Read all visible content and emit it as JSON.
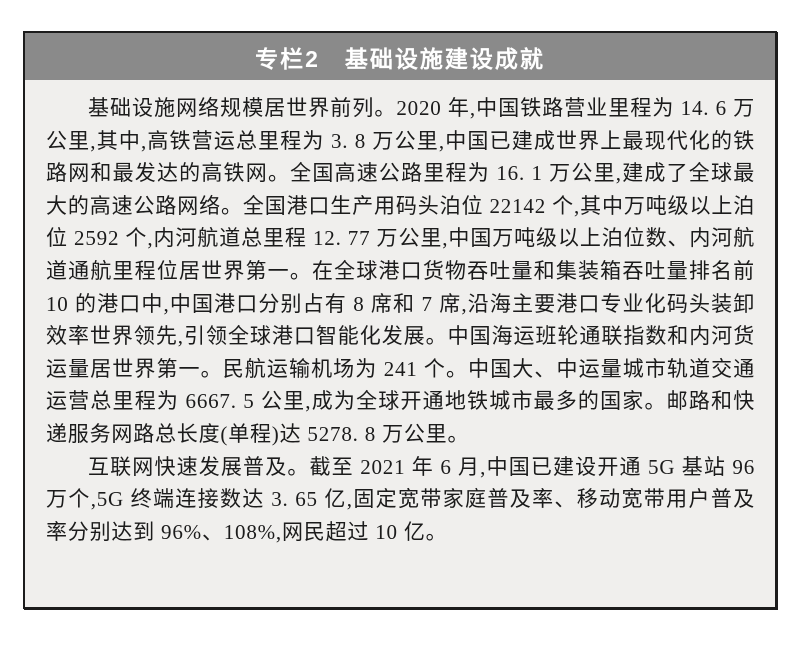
{
  "panel": {
    "title": "专栏2　基础设施建设成就",
    "paragraphs": [
      "基础设施网络规模居世界前列。2020 年,中国铁路营业里程为 14. 6 万公里,其中,高铁营运总里程为 3. 8 万公里,中国已建成世界上最现代化的铁路网和最发达的高铁网。全国高速公路里程为 16. 1 万公里,建成了全球最大的高速公路网络。全国港口生产用码头泊位 22142 个,其中万吨级以上泊位 2592 个,内河航道总里程 12. 77 万公里,中国万吨级以上泊位数、内河航道通航里程位居世界第一。在全球港口货物吞吐量和集装箱吞吐量排名前 10 的港口中,中国港口分别占有 8 席和 7 席,沿海主要港口专业化码头装卸效率世界领先,引领全球港口智能化发展。中国海运班轮通联指数和内河货运量居世界第一。民航运输机场为 241 个。中国大、中运量城市轨道交通运营总里程为 6667. 5 公里,成为全球开通地铁城市最多的国家。邮路和快递服务网路总长度(单程)达 5278. 8 万公里。",
      "互联网快速发展普及。截至 2021 年 6 月,中国已建设开通 5G 基站 96 万个,5G 终端连接数达 3. 65 亿,固定宽带家庭普及率、移动宽带用户普及率分别达到 96%、108%,网民超过 10 亿。"
    ],
    "colors": {
      "header_bg": "#8a8a8a",
      "body_bg": "#f0efed",
      "border": "#1c1c1c",
      "title_color": "#ffffff",
      "text_color": "#1b1b1b",
      "page_bg": "#ffffff"
    }
  }
}
